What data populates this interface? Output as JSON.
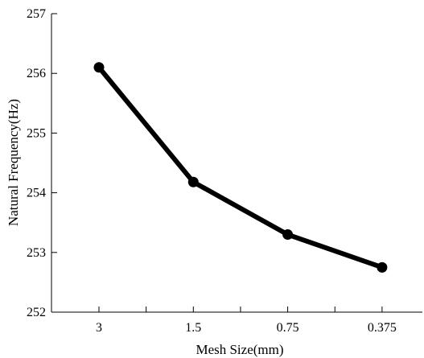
{
  "chart_data": {
    "type": "line",
    "title": "",
    "xlabel": "Mesh Size(mm)",
    "ylabel": "Natural Frequency(Hz)",
    "categories": [
      "3",
      "1.5",
      "0.75",
      "0.375"
    ],
    "ylim": [
      252,
      257
    ],
    "yticks": [
      "252",
      "253",
      "254",
      "255",
      "256",
      "257"
    ],
    "series": [
      {
        "values": [
          256.1,
          254.18,
          253.3,
          252.75
        ]
      }
    ],
    "grid": false,
    "line_color": "#000000"
  }
}
